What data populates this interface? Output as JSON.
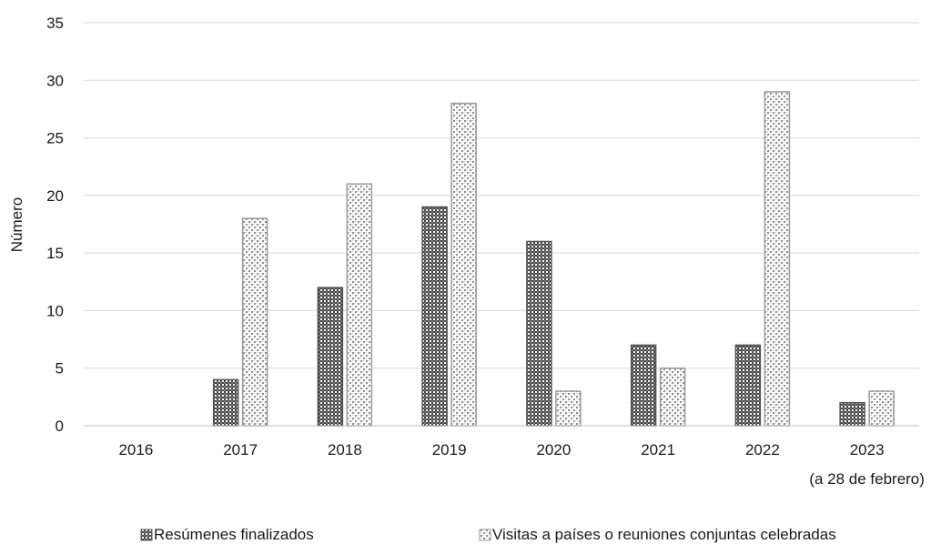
{
  "chart_data": {
    "type": "bar",
    "title": "",
    "xlabel": "",
    "ylabel": "Número",
    "ylim": [
      0,
      35
    ],
    "yticks": [
      0,
      5,
      10,
      15,
      20,
      25,
      30,
      35
    ],
    "grid": true,
    "legend_position": "bottom",
    "categories": [
      "2016",
      "2017",
      "2018",
      "2019",
      "2020",
      "2021",
      "2022",
      "2023"
    ],
    "category_note": {
      "2023": "(a 28 de febrero)"
    },
    "series": [
      {
        "name": "Resúmenes finalizados",
        "values": [
          0,
          4,
          12,
          19,
          16,
          7,
          7,
          2
        ],
        "color": "#555555",
        "pattern": "dense-dots"
      },
      {
        "name": "Visitas a países o reuniones conjuntas celebradas",
        "values": [
          0,
          18,
          21,
          28,
          3,
          5,
          29,
          3
        ],
        "color": "#9a9a9a",
        "pattern": "checker"
      }
    ],
    "colors": {
      "grid": "#d9d9d9",
      "axis": "#bfbfbf",
      "bar_outline": "#7f7f7f"
    }
  }
}
